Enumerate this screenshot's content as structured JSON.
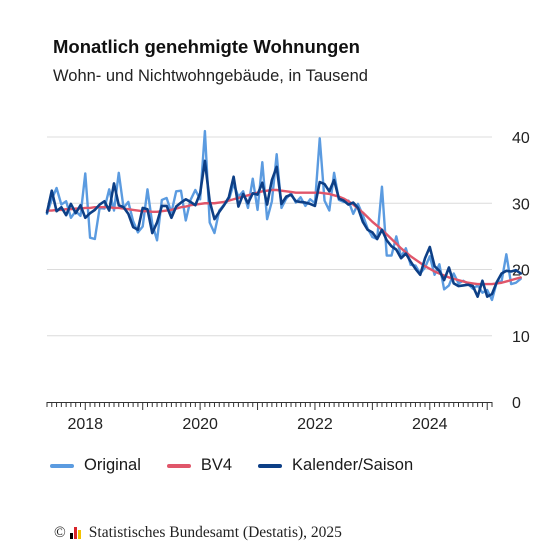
{
  "title": "Monatlich genehmigte Wohnungen",
  "subtitle": "Wohn- und Nichtwohngebäude, in Tausend",
  "footer": {
    "copyright": "©",
    "source": "Statistisches Bundesamt (Destatis), 2025"
  },
  "colors": {
    "original": "#5b9be0",
    "bv4": "#e0566a",
    "kalender": "#0d3f86",
    "grid": "#dcdcdc",
    "logo": [
      "#000000",
      "#d8242b",
      "#f2c200"
    ]
  },
  "chart_data": {
    "type": "line",
    "title": "Monatlich genehmigte Wohnungen",
    "subtitle": "Wohn- und Nichtwohngebäude, in Tausend",
    "xlabel": "",
    "ylabel": "",
    "ylim": [
      0,
      40
    ],
    "yticks": [
      0,
      10,
      20,
      30,
      40
    ],
    "xticks": [
      {
        "label": "2018",
        "x": "2018-01"
      },
      {
        "label": "2020",
        "x": "2020-01"
      },
      {
        "label": "2022",
        "x": "2022-01"
      },
      {
        "label": "2024",
        "x": "2024-01"
      }
    ],
    "x_start": "2017-05",
    "x_end": "2025-02",
    "grid": true,
    "legend_position": "bottom",
    "series": [
      {
        "name": "Original",
        "color": "#5b9be0",
        "values": [
          28.4,
          30.6,
          32.3,
          29.8,
          30.3,
          27.8,
          28.8,
          28.1,
          34.5,
          24.8,
          24.6,
          29.3,
          29.2,
          32.1,
          28.9,
          34.6,
          29.3,
          30.2,
          27.3,
          25.6,
          26.5,
          32.1,
          26.9,
          24.4,
          30.5,
          30.8,
          28.6,
          31.8,
          31.9,
          27.4,
          30.5,
          32.0,
          30.6,
          40.9,
          27.1,
          25.5,
          28.9,
          29.8,
          30.5,
          32.9,
          31.0,
          31.8,
          29.3,
          33.7,
          29.0,
          36.2,
          27.6,
          30.3,
          37.4,
          29.3,
          30.7,
          31.5,
          30.1,
          30.9,
          29.6,
          30.6,
          30.0,
          39.8,
          30.4,
          28.9,
          34.6,
          30.5,
          30.2,
          30.4,
          28.4,
          29.9,
          28.2,
          26.2,
          24.9,
          24.6,
          32.5,
          22.1,
          22.1,
          25.0,
          21.9,
          23.2,
          20.7,
          20.6,
          19.4,
          20.3,
          22.0,
          19.2,
          20.8,
          17.0,
          17.6,
          19.4,
          17.9,
          18.3,
          17.8,
          17.1,
          17.6,
          16.5,
          16.9,
          15.4,
          18.1,
          18.2,
          22.3,
          17.8,
          18.0,
          18.6
        ]
      },
      {
        "name": "BV4",
        "color": "#e0566a",
        "values": [
          28.9,
          28.9,
          29.0,
          29.0,
          29.1,
          29.1,
          29.2,
          29.2,
          29.3,
          29.3,
          29.4,
          29.4,
          29.4,
          29.4,
          29.3,
          29.3,
          29.2,
          29.1,
          29.0,
          28.9,
          28.8,
          28.8,
          28.7,
          28.7,
          28.8,
          28.9,
          29.0,
          29.2,
          29.4,
          29.5,
          29.7,
          29.8,
          29.9,
          30.0,
          30.0,
          30.0,
          30.1,
          30.2,
          30.4,
          30.6,
          30.8,
          31.0,
          31.2,
          31.4,
          31.6,
          31.8,
          31.9,
          32.0,
          32.0,
          31.9,
          31.8,
          31.7,
          31.6,
          31.6,
          31.6,
          31.6,
          31.6,
          31.6,
          31.5,
          31.4,
          31.2,
          31.0,
          30.7,
          30.3,
          29.8,
          29.2,
          28.6,
          27.9,
          27.2,
          26.6,
          26.0,
          25.3,
          24.6,
          23.9,
          23.2,
          22.6,
          22.0,
          21.5,
          21.0,
          20.5,
          20.1,
          19.7,
          19.4,
          19.1,
          18.8,
          18.6,
          18.4,
          18.2,
          18.0,
          17.9,
          17.8,
          17.8,
          17.8,
          17.8,
          17.9,
          18.0,
          18.2,
          18.4,
          18.6,
          18.8
        ]
      },
      {
        "name": "Kalender/Saison",
        "color": "#0d3f86",
        "values": [
          28.6,
          31.9,
          28.8,
          29.4,
          28.2,
          29.9,
          28.5,
          29.7,
          27.8,
          28.5,
          29.0,
          29.8,
          30.3,
          28.9,
          33.0,
          29.7,
          29.4,
          28.4,
          26.4,
          26.0,
          29.3,
          29.1,
          25.5,
          27.1,
          29.6,
          29.6,
          27.8,
          29.5,
          30.1,
          30.6,
          30.2,
          29.7,
          31.5,
          36.4,
          30.3,
          27.6,
          28.7,
          29.7,
          30.9,
          34.0,
          29.5,
          31.4,
          30.0,
          31.5,
          31.3,
          33.1,
          29.8,
          33.5,
          35.5,
          29.9,
          31.0,
          31.3,
          30.3,
          30.2,
          30.1,
          29.9,
          29.6,
          33.2,
          32.9,
          31.8,
          33.5,
          30.7,
          30.4,
          29.8,
          30.1,
          29.3,
          27.2,
          26.0,
          25.6,
          24.6,
          26.0,
          24.4,
          23.5,
          23.0,
          21.7,
          22.4,
          21.2,
          20.1,
          19.2,
          21.7,
          23.4,
          20.5,
          19.8,
          18.4,
          20.3,
          17.9,
          17.5,
          17.6,
          17.7,
          17.5,
          15.9,
          18.3,
          15.9,
          16.3,
          18.1,
          19.4,
          19.8,
          19.7,
          19.9,
          19.4
        ]
      }
    ]
  }
}
